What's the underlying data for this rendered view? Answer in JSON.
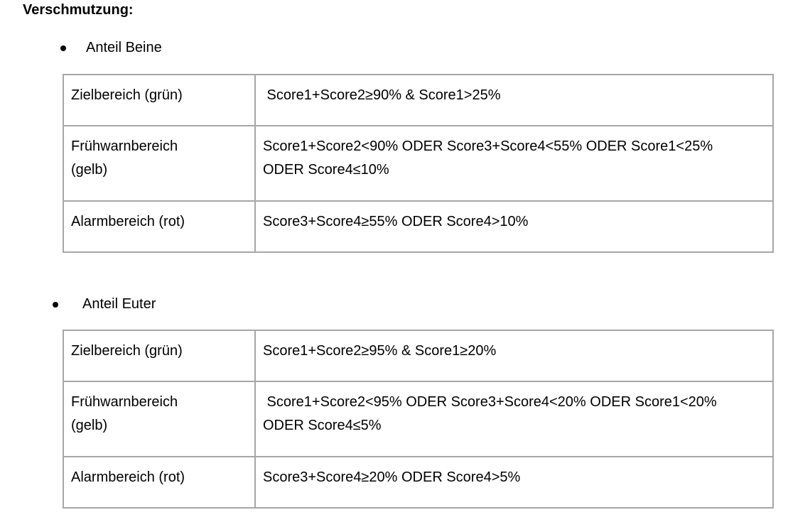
{
  "heading": "Verschmutzung:",
  "sections": [
    {
      "bullet": "Anteil Beine",
      "rows": [
        {
          "label": [
            "Zielbereich (grün)"
          ],
          "value": [
            " Score1+Score2≥90% & Score1>25%"
          ]
        },
        {
          "label": [
            "Frühwarnbereich",
            "(gelb)"
          ],
          "value": [
            "Score1+Score2<90% ODER Score3+Score4<55% ODER Score1<25%",
            "ODER Score4≤10%"
          ]
        },
        {
          "label": [
            "Alarmbereich (rot)"
          ],
          "value": [
            "Score3+Score4≥55% ODER Score4>10%"
          ]
        }
      ]
    },
    {
      "bullet": "Anteil Euter",
      "rows": [
        {
          "label": [
            "Zielbereich (grün)"
          ],
          "value": [
            "Score1+Score2≥95% & Score1≥20%"
          ]
        },
        {
          "label": [
            "Frühwarnbereich",
            "(gelb)"
          ],
          "value": [
            " Score1+Score2<95% ODER Score3+Score4<20% ODER Score1<20%",
            "ODER Score4≤5%"
          ]
        },
        {
          "label": [
            "Alarmbereich (rot)"
          ],
          "value": [
            "Score3+Score4≥20% ODER Score4>5%"
          ]
        }
      ]
    }
  ]
}
